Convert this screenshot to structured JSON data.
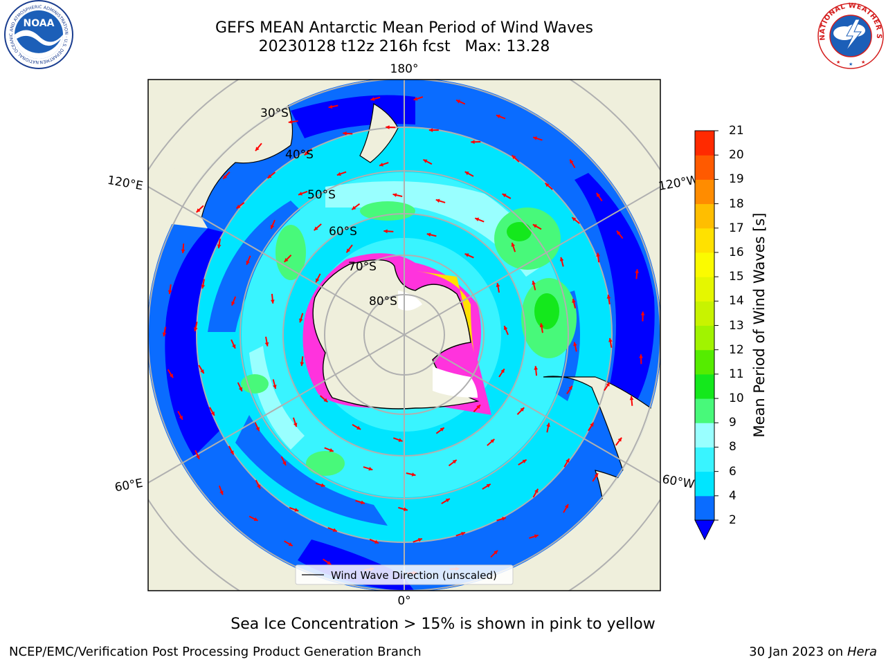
{
  "header": {
    "title_line1": "GEFS MEAN Antarctic Mean Period of Wind Waves",
    "title_line2": "20230128 t12z 216h fcst   Max: 13.28"
  },
  "logos": {
    "noaa_text": "NOAA",
    "noaa_ring_text": "NATIONAL OCEANIC AND ATMOSPHERIC ADMINISTRATION · U.S. DEPARTMENT OF COMMERCE",
    "nws_ring_text": "NATIONAL WEATHER SERVICE"
  },
  "map": {
    "projection": "south polar stereographic",
    "lat_labels": [
      "30°S",
      "40°S",
      "50°S",
      "60°S",
      "70°S",
      "80°S"
    ],
    "lon_labels": {
      "top": "180°",
      "bottom": "0°",
      "upper_left": "120°E",
      "lower_left": "60°E",
      "upper_right": "120°W",
      "lower_right": "60°W"
    },
    "legend_label": "Wind Wave Direction (unscaled)"
  },
  "colorbar": {
    "label": "Mean Period of Wind Waves [s]",
    "ticks": [
      "2",
      "4",
      "6",
      "8",
      "9",
      "10",
      "11",
      "12",
      "13",
      "14",
      "15",
      "16",
      "17",
      "18",
      "19",
      "20",
      "21"
    ],
    "colors": [
      "#0a6cff",
      "#00e5ff",
      "#39f4ff",
      "#99ffff",
      "#48f97a",
      "#14e81c",
      "#55ec00",
      "#a1f300",
      "#c8f300",
      "#e5f700",
      "#fbfb00",
      "#ffe100",
      "#ffbe00",
      "#ff8c00",
      "#ff5a00",
      "#ff2a00",
      "#ff0000"
    ],
    "extend_color": "#0000ff"
  },
  "map_colors": {
    "land": "#efefdc",
    "ocean_deep_blue": "#0000ff",
    "ocean_blue": "#0a6cff",
    "ocean_cyan": "#00e5ff",
    "ocean_light_cyan": "#39f4ff",
    "ocean_pale": "#99ffff",
    "ocean_green": "#48f97a",
    "ice_pink": "#ff33dd",
    "arrow_red": "#ff0000",
    "grid": "#b0b0b0"
  },
  "notes": {
    "sea_ice": "Sea Ice Concentration > 15% is shown in pink to yellow"
  },
  "footer": {
    "left": "NCEP/EMC/Verification Post Processing Product Generation Branch",
    "right_date": "30 Jan 2023 on ",
    "right_machine": "Hera"
  }
}
